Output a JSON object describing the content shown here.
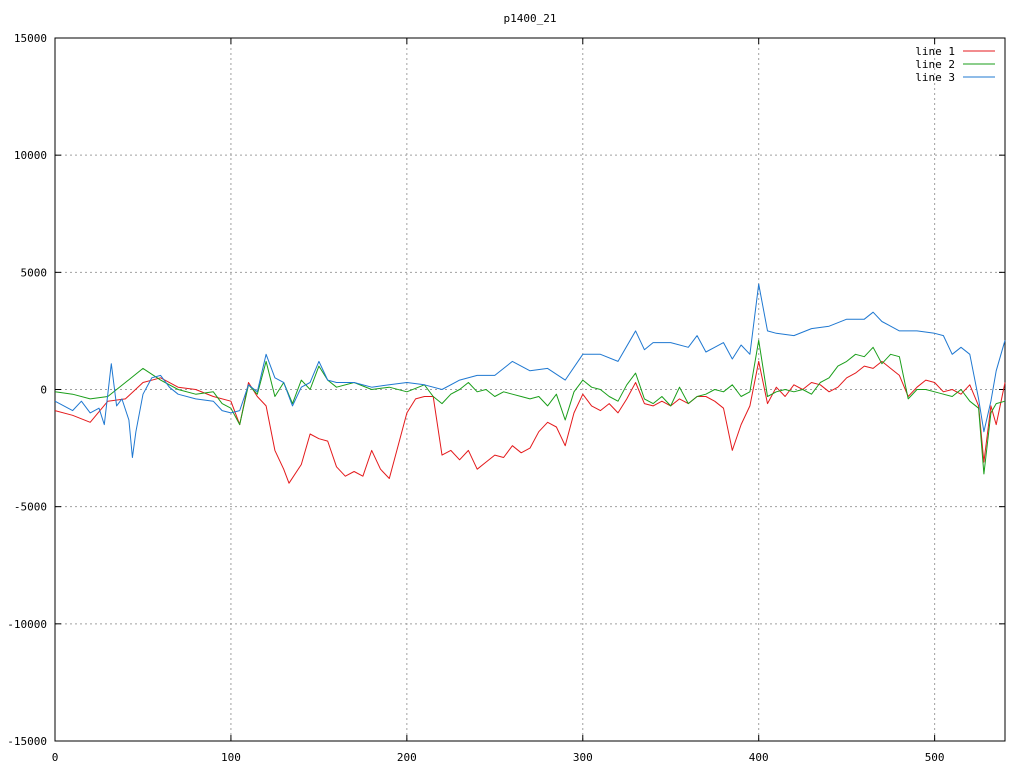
{
  "chart_data": {
    "type": "line",
    "title": "p1400_21",
    "xlabel": "",
    "ylabel": "",
    "xlim": [
      0,
      540
    ],
    "ylim": [
      -15000,
      15000
    ],
    "grid": true,
    "legend_placement": "top-right",
    "x_ticks": [
      "0",
      "100",
      "200",
      "300",
      "400",
      "500"
    ],
    "x_tick_values": [
      0,
      100,
      200,
      300,
      400,
      500
    ],
    "y_ticks": [
      "15000",
      "10000",
      "5000",
      "0",
      "-5000",
      "-10000",
      "-15000"
    ],
    "y_tick_values": [
      15000,
      10000,
      5000,
      0,
      -5000,
      -10000,
      -15000
    ],
    "series": [
      {
        "name": "line 1",
        "color": "#e41a1c",
        "points": [
          [
            0,
            -900
          ],
          [
            10,
            -1100
          ],
          [
            20,
            -1400
          ],
          [
            30,
            -500
          ],
          [
            40,
            -400
          ],
          [
            50,
            300
          ],
          [
            60,
            500
          ],
          [
            70,
            100
          ],
          [
            80,
            0
          ],
          [
            90,
            -300
          ],
          [
            100,
            -500
          ],
          [
            105,
            -1500
          ],
          [
            110,
            300
          ],
          [
            115,
            -300
          ],
          [
            120,
            -700
          ],
          [
            125,
            -2600
          ],
          [
            130,
            -3400
          ],
          [
            133,
            -4000
          ],
          [
            140,
            -3200
          ],
          [
            145,
            -1900
          ],
          [
            150,
            -2100
          ],
          [
            155,
            -2200
          ],
          [
            160,
            -3300
          ],
          [
            165,
            -3700
          ],
          [
            170,
            -3500
          ],
          [
            175,
            -3700
          ],
          [
            180,
            -2600
          ],
          [
            185,
            -3400
          ],
          [
            190,
            -3800
          ],
          [
            195,
            -2400
          ],
          [
            200,
            -1000
          ],
          [
            205,
            -400
          ],
          [
            210,
            -300
          ],
          [
            215,
            -300
          ],
          [
            220,
            -2800
          ],
          [
            225,
            -2600
          ],
          [
            230,
            -3000
          ],
          [
            235,
            -2600
          ],
          [
            240,
            -3400
          ],
          [
            245,
            -3100
          ],
          [
            250,
            -2800
          ],
          [
            255,
            -2900
          ],
          [
            260,
            -2400
          ],
          [
            265,
            -2700
          ],
          [
            270,
            -2500
          ],
          [
            275,
            -1800
          ],
          [
            280,
            -1400
          ],
          [
            285,
            -1600
          ],
          [
            290,
            -2400
          ],
          [
            295,
            -1000
          ],
          [
            300,
            -200
          ],
          [
            305,
            -700
          ],
          [
            310,
            -900
          ],
          [
            315,
            -600
          ],
          [
            320,
            -1000
          ],
          [
            325,
            -400
          ],
          [
            330,
            300
          ],
          [
            335,
            -600
          ],
          [
            340,
            -700
          ],
          [
            345,
            -500
          ],
          [
            350,
            -700
          ],
          [
            355,
            -400
          ],
          [
            360,
            -600
          ],
          [
            365,
            -300
          ],
          [
            370,
            -300
          ],
          [
            375,
            -500
          ],
          [
            380,
            -800
          ],
          [
            385,
            -2600
          ],
          [
            390,
            -1500
          ],
          [
            395,
            -700
          ],
          [
            400,
            1200
          ],
          [
            405,
            -600
          ],
          [
            410,
            100
          ],
          [
            415,
            -300
          ],
          [
            420,
            200
          ],
          [
            425,
            0
          ],
          [
            430,
            300
          ],
          [
            435,
            200
          ],
          [
            440,
            -100
          ],
          [
            445,
            100
          ],
          [
            450,
            500
          ],
          [
            455,
            700
          ],
          [
            460,
            1000
          ],
          [
            465,
            900
          ],
          [
            470,
            1200
          ],
          [
            475,
            900
          ],
          [
            480,
            600
          ],
          [
            485,
            -300
          ],
          [
            490,
            100
          ],
          [
            495,
            400
          ],
          [
            500,
            300
          ],
          [
            505,
            -100
          ],
          [
            510,
            0
          ],
          [
            515,
            -200
          ],
          [
            520,
            200
          ],
          [
            525,
            -700
          ],
          [
            528,
            -3100
          ],
          [
            532,
            -700
          ],
          [
            535,
            -1500
          ],
          [
            540,
            300
          ]
        ]
      },
      {
        "name": "line 2",
        "color": "#1a9e1a",
        "points": [
          [
            0,
            -100
          ],
          [
            10,
            -200
          ],
          [
            20,
            -400
          ],
          [
            30,
            -300
          ],
          [
            40,
            300
          ],
          [
            50,
            900
          ],
          [
            60,
            400
          ],
          [
            70,
            0
          ],
          [
            80,
            -200
          ],
          [
            90,
            -100
          ],
          [
            95,
            -600
          ],
          [
            100,
            -800
          ],
          [
            105,
            -1500
          ],
          [
            110,
            200
          ],
          [
            115,
            -200
          ],
          [
            120,
            1200
          ],
          [
            125,
            -300
          ],
          [
            130,
            300
          ],
          [
            135,
            -600
          ],
          [
            140,
            400
          ],
          [
            145,
            0
          ],
          [
            150,
            1000
          ],
          [
            155,
            400
          ],
          [
            160,
            100
          ],
          [
            170,
            300
          ],
          [
            180,
            0
          ],
          [
            190,
            100
          ],
          [
            200,
            -100
          ],
          [
            210,
            200
          ],
          [
            215,
            -300
          ],
          [
            220,
            -600
          ],
          [
            225,
            -200
          ],
          [
            230,
            0
          ],
          [
            235,
            300
          ],
          [
            240,
            -100
          ],
          [
            245,
            0
          ],
          [
            250,
            -300
          ],
          [
            255,
            -100
          ],
          [
            260,
            -200
          ],
          [
            265,
            -300
          ],
          [
            270,
            -400
          ],
          [
            275,
            -300
          ],
          [
            280,
            -700
          ],
          [
            285,
            -200
          ],
          [
            290,
            -1300
          ],
          [
            295,
            -100
          ],
          [
            300,
            400
          ],
          [
            305,
            100
          ],
          [
            310,
            0
          ],
          [
            315,
            -300
          ],
          [
            320,
            -500
          ],
          [
            325,
            200
          ],
          [
            330,
            700
          ],
          [
            335,
            -400
          ],
          [
            340,
            -600
          ],
          [
            345,
            -300
          ],
          [
            350,
            -700
          ],
          [
            355,
            100
          ],
          [
            360,
            -600
          ],
          [
            365,
            -300
          ],
          [
            370,
            -200
          ],
          [
            375,
            0
          ],
          [
            380,
            -100
          ],
          [
            385,
            200
          ],
          [
            390,
            -300
          ],
          [
            395,
            -100
          ],
          [
            400,
            2100
          ],
          [
            405,
            -300
          ],
          [
            410,
            -100
          ],
          [
            415,
            0
          ],
          [
            420,
            -100
          ],
          [
            425,
            0
          ],
          [
            430,
            -200
          ],
          [
            435,
            300
          ],
          [
            440,
            500
          ],
          [
            445,
            1000
          ],
          [
            450,
            1200
          ],
          [
            455,
            1500
          ],
          [
            460,
            1400
          ],
          [
            465,
            1800
          ],
          [
            470,
            1100
          ],
          [
            475,
            1500
          ],
          [
            480,
            1400
          ],
          [
            485,
            -400
          ],
          [
            490,
            0
          ],
          [
            495,
            0
          ],
          [
            500,
            -100
          ],
          [
            505,
            -200
          ],
          [
            510,
            -300
          ],
          [
            515,
            0
          ],
          [
            520,
            -500
          ],
          [
            525,
            -800
          ],
          [
            528,
            -3600
          ],
          [
            532,
            -1000
          ],
          [
            535,
            -600
          ],
          [
            540,
            -500
          ]
        ]
      },
      {
        "name": "line 3",
        "color": "#1f78d1",
        "points": [
          [
            0,
            -500
          ],
          [
            10,
            -900
          ],
          [
            15,
            -500
          ],
          [
            20,
            -1000
          ],
          [
            25,
            -800
          ],
          [
            28,
            -1500
          ],
          [
            32,
            1100
          ],
          [
            35,
            -700
          ],
          [
            38,
            -400
          ],
          [
            42,
            -1300
          ],
          [
            44,
            -2900
          ],
          [
            46,
            -1800
          ],
          [
            50,
            -200
          ],
          [
            55,
            500
          ],
          [
            60,
            600
          ],
          [
            65,
            100
          ],
          [
            70,
            -200
          ],
          [
            80,
            -400
          ],
          [
            90,
            -500
          ],
          [
            95,
            -900
          ],
          [
            100,
            -1000
          ],
          [
            105,
            -900
          ],
          [
            110,
            200
          ],
          [
            115,
            -100
          ],
          [
            120,
            1500
          ],
          [
            125,
            500
          ],
          [
            130,
            300
          ],
          [
            135,
            -700
          ],
          [
            140,
            100
          ],
          [
            145,
            300
          ],
          [
            150,
            1200
          ],
          [
            155,
            400
          ],
          [
            160,
            300
          ],
          [
            170,
            300
          ],
          [
            180,
            100
          ],
          [
            190,
            200
          ],
          [
            200,
            300
          ],
          [
            210,
            200
          ],
          [
            220,
            0
          ],
          [
            230,
            400
          ],
          [
            240,
            600
          ],
          [
            250,
            600
          ],
          [
            260,
            1200
          ],
          [
            270,
            800
          ],
          [
            280,
            900
          ],
          [
            290,
            400
          ],
          [
            300,
            1500
          ],
          [
            310,
            1500
          ],
          [
            320,
            1200
          ],
          [
            330,
            2500
          ],
          [
            335,
            1700
          ],
          [
            340,
            2000
          ],
          [
            350,
            2000
          ],
          [
            360,
            1800
          ],
          [
            365,
            2300
          ],
          [
            370,
            1600
          ],
          [
            375,
            1800
          ],
          [
            380,
            2000
          ],
          [
            385,
            1300
          ],
          [
            390,
            1900
          ],
          [
            395,
            1500
          ],
          [
            400,
            4500
          ],
          [
            405,
            2500
          ],
          [
            410,
            2400
          ],
          [
            420,
            2300
          ],
          [
            430,
            2600
          ],
          [
            440,
            2700
          ],
          [
            450,
            3000
          ],
          [
            460,
            3000
          ],
          [
            465,
            3300
          ],
          [
            470,
            2900
          ],
          [
            480,
            2500
          ],
          [
            490,
            2500
          ],
          [
            500,
            2400
          ],
          [
            505,
            2300
          ],
          [
            510,
            1500
          ],
          [
            515,
            1800
          ],
          [
            520,
            1500
          ],
          [
            525,
            -400
          ],
          [
            528,
            -1800
          ],
          [
            532,
            -500
          ],
          [
            535,
            800
          ],
          [
            540,
            2100
          ]
        ]
      }
    ]
  }
}
